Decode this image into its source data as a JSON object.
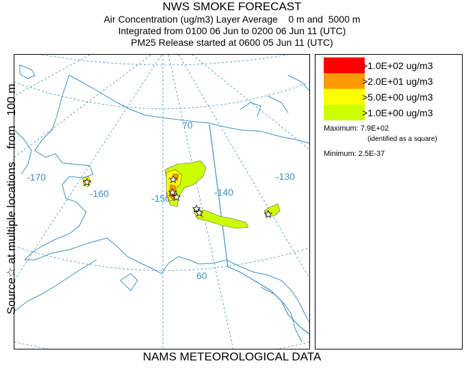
{
  "title": {
    "line1": "NWS SMOKE FORECAST",
    "line2": "Air Concentration (ug/m3) Layer Average    0 m and  5000 m",
    "line3": "Integrated from 0100 06 Jun to 0200 06 Jun 11 (UTC)",
    "line4": "PM25 Release started at 0600 05 Jun 11 (UTC)"
  },
  "left_label": "Source☆ at multiple locations    from   100 m",
  "bottom_label": "NAMS METEOROLOGICAL DATA",
  "map": {
    "graticule_labels": {
      "lon_170": "-170",
      "lon_160": "-160",
      "lon_150": "-150",
      "lon_140": "-140",
      "lon_130": "-130",
      "lat_70": "70",
      "lat_60": "60"
    },
    "colors": {
      "coast": "#3a8fc0",
      "graticule": "#3a8fc0",
      "band_red": "#ff0000",
      "band_orange": "#ff9900",
      "band_yellow": "#ffff00",
      "band_green": "#ccff00"
    }
  },
  "legend": {
    "items": [
      {
        "label": ">1.0E+02 ug/m3",
        "color": "#ff0000"
      },
      {
        "label": ">2.0E+01 ug/m3",
        "color": "#ff9900"
      },
      {
        "label": ">5.0E+00 ug/m3",
        "color": "#ffff00"
      },
      {
        "label": ">1.0E+00 ug/m3",
        "color": "#ccff00"
      }
    ],
    "maximum": "Maximum: 7.9E+02",
    "maximum_note": "(identified as a square)",
    "minimum": "Minimum: 2.5E-37"
  }
}
